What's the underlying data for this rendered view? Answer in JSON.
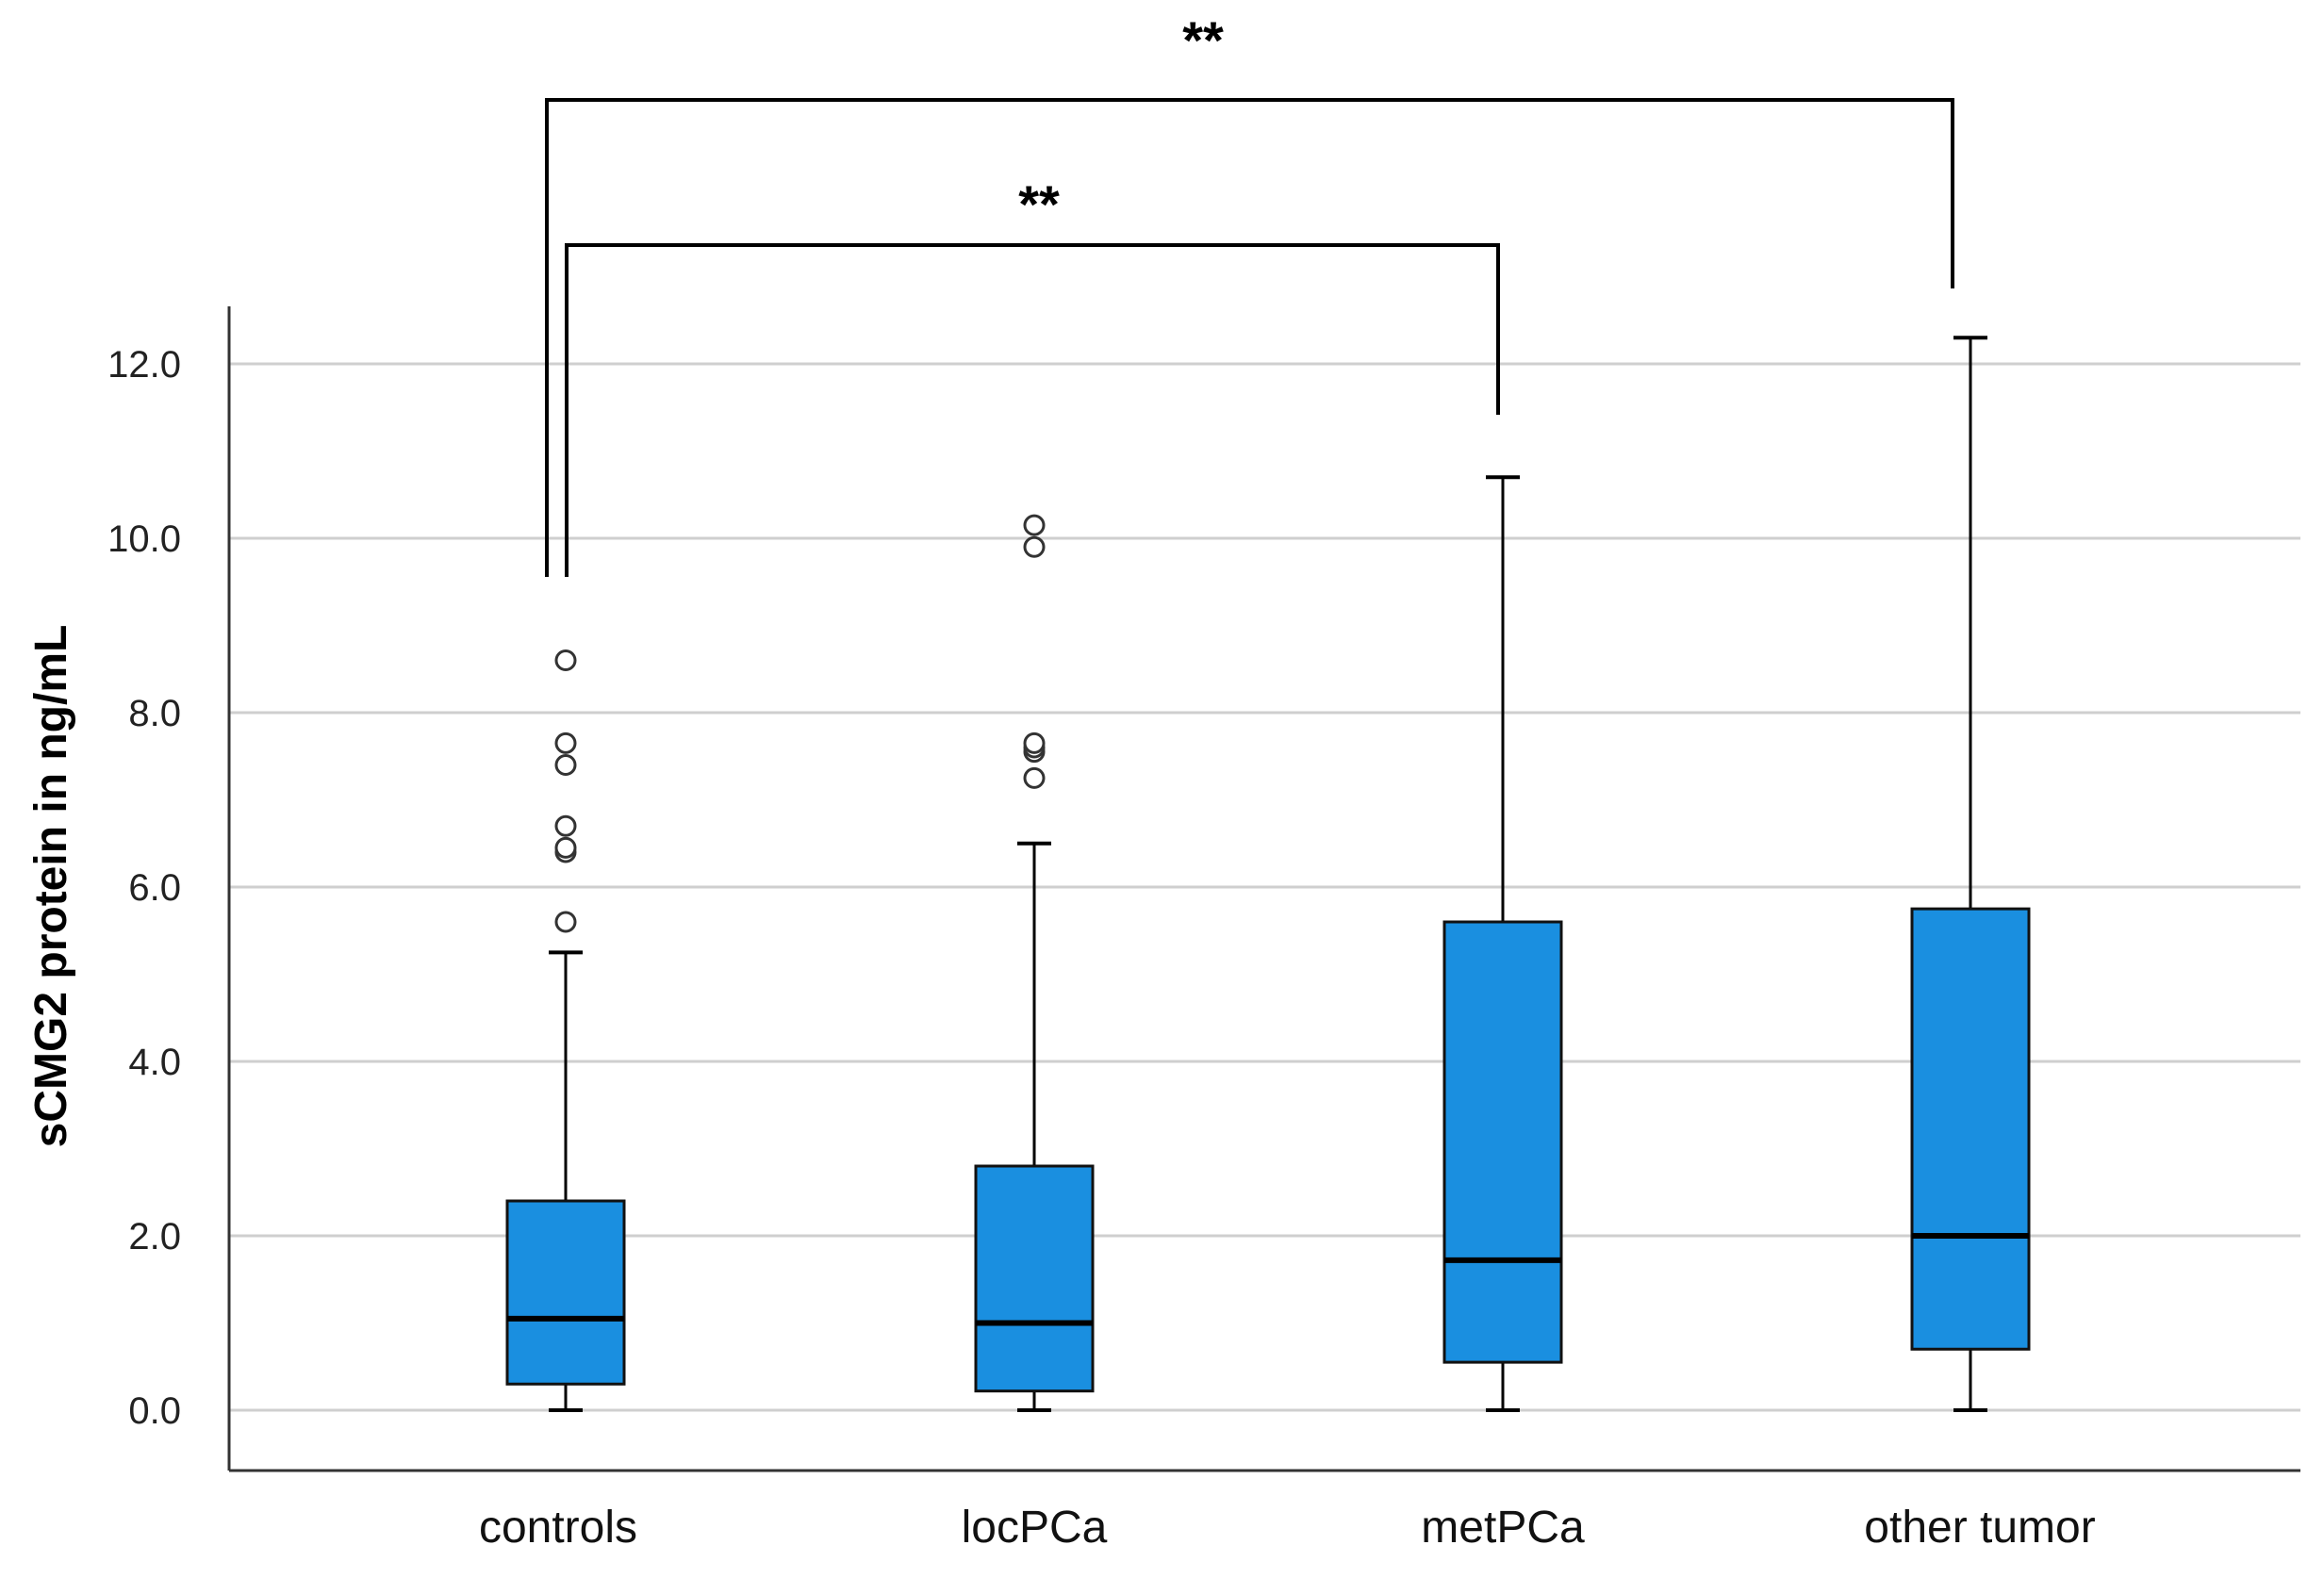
{
  "chart_data": {
    "type": "box",
    "ylabel": "sCMG2 protein in ng/mL",
    "ylim": [
      -0.7,
      12.7
    ],
    "yticks": [
      0,
      2,
      4,
      6,
      8,
      10,
      12
    ],
    "ytick_labels": [
      "0.0",
      "2.0",
      "4.0",
      "6.0",
      "8.0",
      "10.0",
      "12.0"
    ],
    "grid": true,
    "box_color": "#1a8fe0",
    "categories": [
      "controls",
      "locPCa",
      "metPCa",
      "other tumor"
    ],
    "boxes": [
      {
        "category": "controls",
        "whisker_low": 0.0,
        "q1": 0.3,
        "median": 1.05,
        "q3": 2.4,
        "whisker_high": 5.25,
        "outliers": [
          5.6,
          6.4,
          6.45,
          6.7,
          7.4,
          7.65,
          8.6
        ]
      },
      {
        "category": "locPCa",
        "whisker_low": 0.0,
        "q1": 0.22,
        "median": 1.0,
        "q3": 2.8,
        "whisker_high": 6.5,
        "outliers": [
          7.25,
          7.55,
          7.6,
          7.65,
          9.9,
          10.15
        ]
      },
      {
        "category": "metPCa",
        "whisker_low": 0.0,
        "q1": 0.55,
        "median": 1.72,
        "q3": 5.6,
        "whisker_high": 10.7,
        "outliers": []
      },
      {
        "category": "other tumor",
        "whisker_low": 0.0,
        "q1": 0.7,
        "median": 2.0,
        "q3": 5.75,
        "whisker_high": 12.3,
        "outliers": []
      }
    ],
    "significance": [
      {
        "from": "controls",
        "to": "metPCa",
        "label": "**"
      },
      {
        "from": "controls",
        "to": "other tumor",
        "label": "**"
      }
    ]
  }
}
